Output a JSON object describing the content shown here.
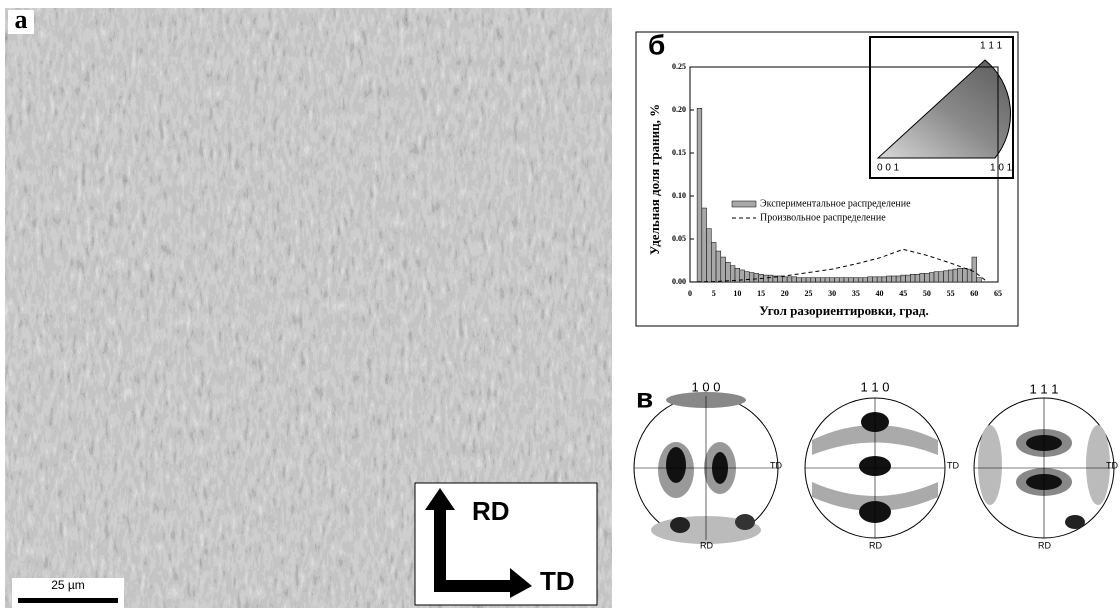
{
  "panels": {
    "a": {
      "label": "а",
      "scale_bar": "25 µm",
      "rd": "RD",
      "td": "TD"
    },
    "b": {
      "label": "б",
      "ipf_corners": [
        "0 0 1",
        "1 0 1",
        "1 1 1"
      ]
    },
    "v": {
      "label": "в",
      "pole_figures": [
        {
          "title": "1 0 0",
          "td": "TD",
          "rd": "RD"
        },
        {
          "title": "1 1 0",
          "td": "TD",
          "rd": "RD"
        },
        {
          "title": "1 1 1",
          "td": "TD",
          "rd": "RD"
        }
      ]
    }
  },
  "chart_data": {
    "type": "histogram",
    "x_label": "Угол разориентировки, град.",
    "y_label": "Удельная доля границ, %",
    "bins": [
      1.5,
      2.5,
      3.5,
      4.5,
      5.5,
      6.5,
      7.5,
      8.5,
      9.5,
      10.5,
      11.5,
      12.5,
      13.5,
      14.5,
      15.5,
      16.5,
      17.5,
      18.5,
      19.5,
      20.5,
      21.5,
      22.5,
      23.5,
      24.5,
      25.5,
      26.5,
      27.5,
      28.5,
      29.5,
      30.5,
      31.5,
      32.5,
      33.5,
      34.5,
      35.5,
      36.5,
      37.5,
      38.5,
      39.5,
      40.5,
      41.5,
      42.5,
      43.5,
      44.5,
      45.5,
      46.5,
      47.5,
      48.5,
      49.5,
      50.5,
      51.5,
      52.5,
      53.5,
      54.5,
      55.5,
      56.5,
      57.5,
      58.5,
      59.5,
      60.5,
      61.5
    ],
    "series": [
      {
        "name": "Экспериментальное распределение",
        "type": "histogram",
        "color": "#a8a8a8",
        "values": [
          0.202,
          0.086,
          0.062,
          0.046,
          0.036,
          0.029,
          0.023,
          0.019,
          0.016,
          0.014,
          0.012,
          0.011,
          0.01,
          0.009,
          0.008,
          0.008,
          0.007,
          0.007,
          0.006,
          0.006,
          0.006,
          0.005,
          0.005,
          0.005,
          0.005,
          0.005,
          0.005,
          0.005,
          0.005,
          0.005,
          0.005,
          0.005,
          0.005,
          0.005,
          0.005,
          0.005,
          0.006,
          0.006,
          0.006,
          0.006,
          0.007,
          0.007,
          0.007,
          0.008,
          0.008,
          0.009,
          0.009,
          0.01,
          0.01,
          0.011,
          0.012,
          0.012,
          0.013,
          0.014,
          0.015,
          0.016,
          0.016,
          0.015,
          0.029,
          0.005
        ]
      },
      {
        "name": "Произвольное распределение",
        "type": "line",
        "color": "#000000",
        "x": [
          0,
          5,
          10,
          15,
          20,
          25,
          30,
          35,
          40,
          45,
          50,
          55,
          60,
          62.8
        ],
        "values": [
          0,
          0.0005,
          0.002,
          0.004,
          0.007,
          0.011,
          0.015,
          0.021,
          0.028,
          0.038,
          0.031,
          0.022,
          0.012,
          0
        ]
      }
    ],
    "xlim": [
      0,
      65
    ],
    "ylim": [
      0,
      0.25
    ],
    "xticks": [
      0,
      5,
      10,
      15,
      20,
      25,
      30,
      35,
      40,
      45,
      50,
      55,
      60,
      65
    ],
    "yticks": [
      {
        "value": 0,
        "label": "0.00"
      },
      0.05,
      {
        "value": 0.1,
        "label": "0.10"
      },
      0.15,
      {
        "value": 0.2,
        "label": "0.20"
      },
      0.25
    ]
  }
}
